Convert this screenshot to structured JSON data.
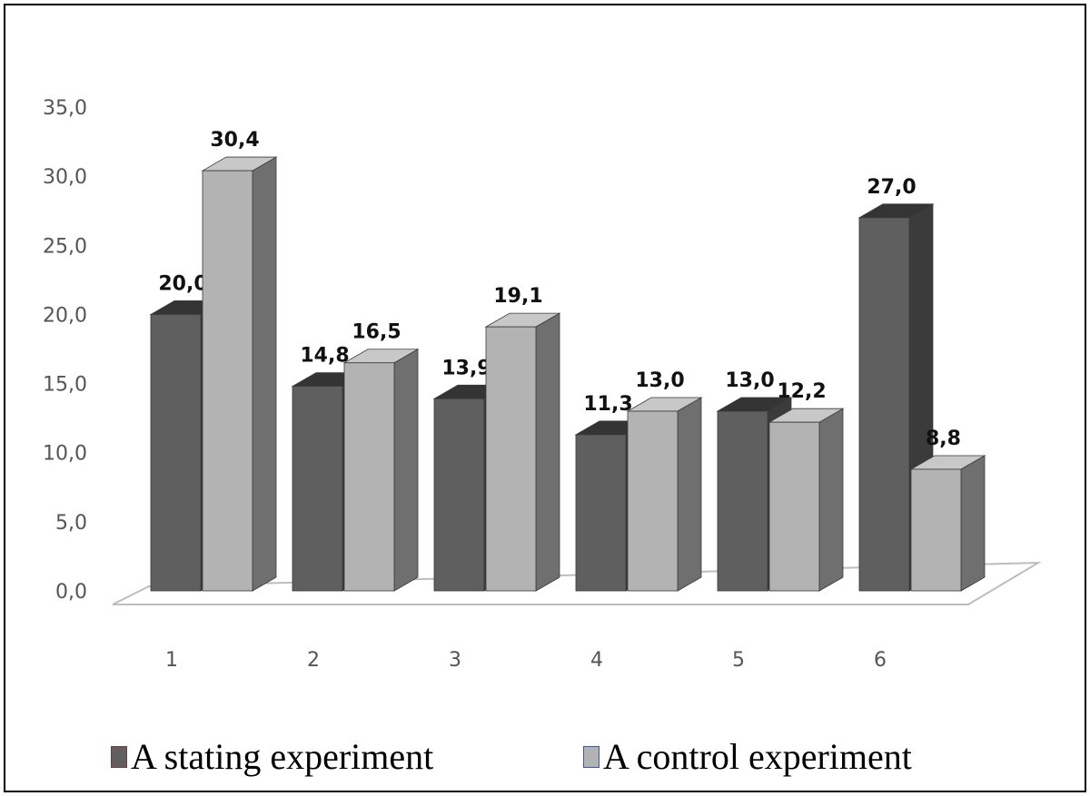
{
  "chart_data": {
    "type": "bar",
    "title": "",
    "xlabel": "",
    "ylabel": "",
    "categories": [
      "1",
      "2",
      "3",
      "4",
      "5",
      "6"
    ],
    "series": [
      {
        "name": "A stating experiment",
        "values": [
          20.0,
          14.8,
          13.9,
          11.3,
          13.0,
          27.0
        ],
        "labels": [
          "20,0",
          "14,8",
          "13,9",
          "11,3",
          "13,0",
          "27,0"
        ],
        "color": "#5f5f5f"
      },
      {
        "name": "A control experiment",
        "values": [
          30.4,
          16.5,
          19.1,
          13.0,
          12.2,
          8.8
        ],
        "labels": [
          "30,4",
          "16,5",
          "19,1",
          "13,0",
          "12,2",
          "8,8"
        ],
        "color": "#b3b3b3"
      }
    ],
    "ylim": [
      0,
      35
    ],
    "yticks": [
      0,
      5,
      10,
      15,
      20,
      25,
      30,
      35
    ],
    "ytick_labels": [
      "0,0",
      "5,0",
      "10,0",
      "15,0",
      "20,0",
      "25,0",
      "30,0",
      "35,0"
    ],
    "grid": false,
    "legend_position": "bottom",
    "three_d": true
  }
}
